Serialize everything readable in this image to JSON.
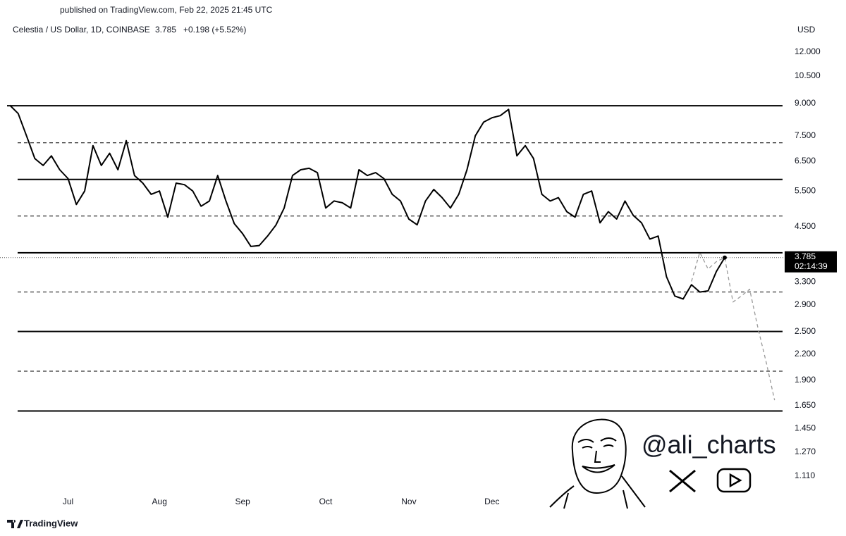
{
  "published": "published on TradingView.com, Feb 22, 2025 21:45 UTC",
  "footer": "TradingView",
  "watermark": "@ali_charts",
  "chart_data": {
    "type": "line",
    "title": "Celestia / US Dollar, 1D, COINBASE",
    "last": "3.785",
    "change": "+0.198 (+5.52%)",
    "currency": "USD",
    "price_label": "3.785",
    "countdown": "02:14:39",
    "log_scale": true,
    "grid": false,
    "ylim": [
      0.925,
      14.28
    ],
    "yticks": [
      {
        "value": 1.11,
        "label": "1.110"
      },
      {
        "value": 1.27,
        "label": "1.270"
      },
      {
        "value": 1.45,
        "label": "1.450"
      },
      {
        "value": 1.65,
        "label": "1.650"
      },
      {
        "value": 1.9,
        "label": "1.900"
      },
      {
        "value": 2.2,
        "label": "2.200"
      },
      {
        "value": 2.5,
        "label": "2.500"
      },
      {
        "value": 2.9,
        "label": "2.900"
      },
      {
        "value": 3.3,
        "label": "3.300"
      },
      {
        "value": 4.5,
        "label": "4.500"
      },
      {
        "value": 5.5,
        "label": "5.500"
      },
      {
        "value": 6.5,
        "label": "6.500"
      },
      {
        "value": 7.5,
        "label": "7.500"
      },
      {
        "value": 9,
        "label": "9.000"
      },
      {
        "value": 10.5,
        "label": "10.500"
      },
      {
        "value": 12,
        "label": "12.000"
      }
    ],
    "categories": [
      null,
      null,
      null,
      null,
      null,
      null,
      null,
      "Jul",
      null,
      null,
      null,
      null,
      null,
      null,
      null,
      null,
      null,
      null,
      "Aug",
      null,
      null,
      null,
      null,
      null,
      null,
      null,
      null,
      null,
      "Sep",
      null,
      null,
      null,
      null,
      null,
      null,
      null,
      null,
      null,
      "Oct",
      null,
      null,
      null,
      null,
      null,
      null,
      null,
      null,
      null,
      "Nov",
      null,
      null,
      null,
      null,
      null,
      null,
      null,
      null,
      null,
      "Dec",
      null,
      null,
      null,
      null,
      null,
      null,
      null,
      null,
      null,
      null,
      null,
      null,
      null,
      null,
      null,
      null,
      null,
      null,
      null,
      null,
      null,
      null,
      null,
      null,
      null,
      null,
      null,
      null,
      null,
      null,
      null,
      null,
      null,
      null,
      null
    ],
    "levels": [
      {
        "value": 8.88,
        "style": "solid"
      },
      {
        "value": 7.21,
        "style": "dashed"
      },
      {
        "value": 5.87,
        "style": "solid"
      },
      {
        "value": 4.78,
        "style": "dashed"
      },
      {
        "value": 3.89,
        "style": "solid"
      },
      {
        "value": 3.12,
        "style": "dashed"
      },
      {
        "value": 2.5,
        "style": "solid"
      },
      {
        "value": 2.0,
        "style": "dashed"
      },
      {
        "value": 1.6,
        "style": "solid"
      }
    ],
    "series": [
      {
        "name": "Price",
        "color": "#000000",
        "style": "solid",
        "values": [
          8.9,
          8.5,
          7.5,
          6.6,
          6.35,
          6.7,
          6.2,
          5.9,
          5.1,
          5.5,
          7.1,
          6.35,
          6.8,
          6.2,
          7.3,
          6.0,
          5.75,
          5.4,
          5.5,
          4.75,
          5.75,
          5.7,
          5.5,
          5.05,
          5.2,
          6.0,
          5.2,
          4.58,
          4.33,
          4.03,
          4.05,
          4.27,
          4.54,
          5.0,
          6.0,
          6.2,
          6.25,
          6.1,
          5.0,
          5.2,
          5.15,
          5.0,
          6.2,
          6.0,
          6.1,
          5.9,
          5.4,
          5.2,
          4.7,
          4.55,
          5.2,
          5.55,
          5.3,
          5.0,
          5.4,
          6.2,
          7.5,
          8.1,
          8.3,
          8.4,
          8.7,
          6.7,
          7.1,
          6.6,
          5.4,
          5.2,
          5.3,
          4.9,
          4.75,
          5.4,
          5.5,
          4.6,
          4.9,
          4.7,
          5.2,
          4.8,
          4.6,
          4.2,
          4.27,
          3.4,
          3.05,
          3.0,
          3.25,
          3.12,
          3.14,
          3.5,
          3.785,
          null,
          null,
          null,
          null,
          null,
          null,
          null
        ]
      },
      {
        "name": "Projection",
        "color": "#9a9a9a",
        "style": "dashed",
        "values": [
          null,
          null,
          null,
          null,
          null,
          null,
          null,
          null,
          null,
          null,
          null,
          null,
          null,
          null,
          null,
          null,
          null,
          null,
          null,
          null,
          null,
          null,
          null,
          null,
          null,
          null,
          null,
          null,
          null,
          null,
          null,
          null,
          null,
          null,
          null,
          null,
          null,
          null,
          null,
          null,
          null,
          null,
          null,
          null,
          null,
          null,
          null,
          null,
          null,
          null,
          null,
          null,
          null,
          null,
          null,
          null,
          null,
          null,
          null,
          null,
          null,
          null,
          null,
          null,
          null,
          null,
          null,
          null,
          null,
          null,
          null,
          null,
          null,
          null,
          null,
          null,
          null,
          null,
          null,
          null,
          null,
          null,
          3.31,
          3.9,
          3.55,
          3.7,
          3.785,
          2.95,
          3.05,
          3.17,
          2.55,
          2.1,
          1.7,
          null
        ]
      }
    ]
  }
}
